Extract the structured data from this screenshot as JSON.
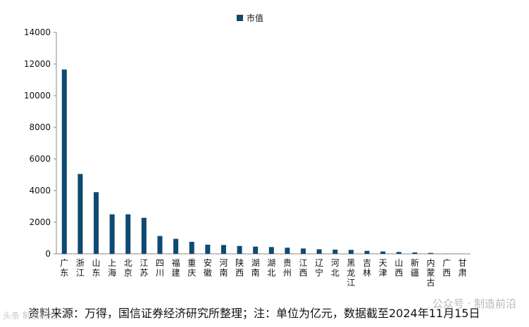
{
  "chart_data": {
    "type": "bar",
    "legend": {
      "label": "市值",
      "placement": "top-center"
    },
    "categories": [
      "广东",
      "浙江",
      "山东",
      "上海",
      "北京",
      "江苏",
      "四川",
      "福建",
      "重庆",
      "安徽",
      "河南",
      "陕西",
      "湖南",
      "湖北",
      "贵州",
      "江西",
      "辽宁",
      "河北",
      "黑龙江",
      "吉林",
      "天津",
      "山西",
      "新疆",
      "内蒙古",
      "广西",
      "甘肃"
    ],
    "series": [
      {
        "name": "市值",
        "values": [
          11650,
          5050,
          3900,
          2500,
          2500,
          2280,
          1130,
          950,
          760,
          580,
          560,
          500,
          460,
          430,
          390,
          340,
          290,
          270,
          250,
          190,
          150,
          120,
          90,
          60,
          10,
          5
        ]
      }
    ],
    "ylim": [
      0,
      14000
    ],
    "yticks": [
      "0",
      "2000",
      "4000",
      "6000",
      "8000",
      "10000",
      "12000",
      "14000"
    ],
    "grid": false,
    "bar_color": "#0e4a72"
  },
  "source_text": "资料来源：万得，国信证券经济研究所整理；注：单位为亿元，数据截至2024年11月15日",
  "watermark": "公众号 · 制造前沿",
  "watermark_left": "头条 制造前沿"
}
